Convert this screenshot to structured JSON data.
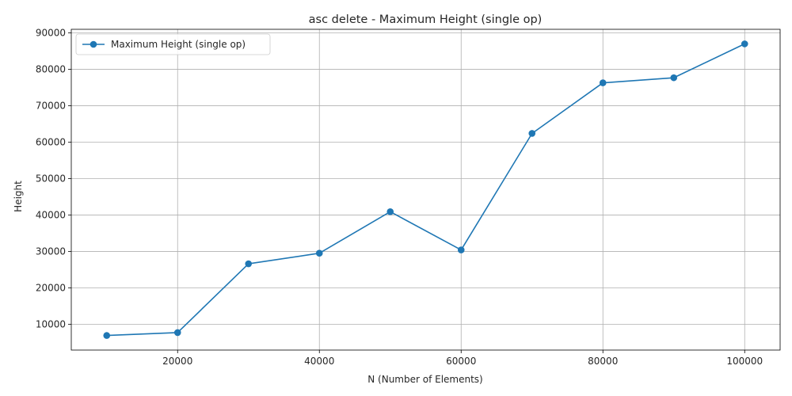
{
  "chart_data": {
    "type": "line",
    "title": "asc delete - Maximum Height (single op)",
    "xlabel": "N (Number of Elements)",
    "ylabel": "Height",
    "xlim": [
      5000,
      105000
    ],
    "ylim": [
      2900,
      91000
    ],
    "xticks": [
      20000,
      40000,
      60000,
      80000,
      100000
    ],
    "yticks": [
      10000,
      20000,
      30000,
      40000,
      50000,
      60000,
      70000,
      80000,
      90000
    ],
    "grid": true,
    "legend": "top-left",
    "series": [
      {
        "name": "Maximum Height (single op)",
        "color": "#1f77b4",
        "marker": "circle",
        "x": [
          10000,
          20000,
          30000,
          40000,
          50000,
          60000,
          70000,
          80000,
          90000,
          100000
        ],
        "y": [
          6900,
          7700,
          26600,
          29500,
          40900,
          30400,
          62400,
          76300,
          77700,
          87000
        ]
      }
    ]
  }
}
